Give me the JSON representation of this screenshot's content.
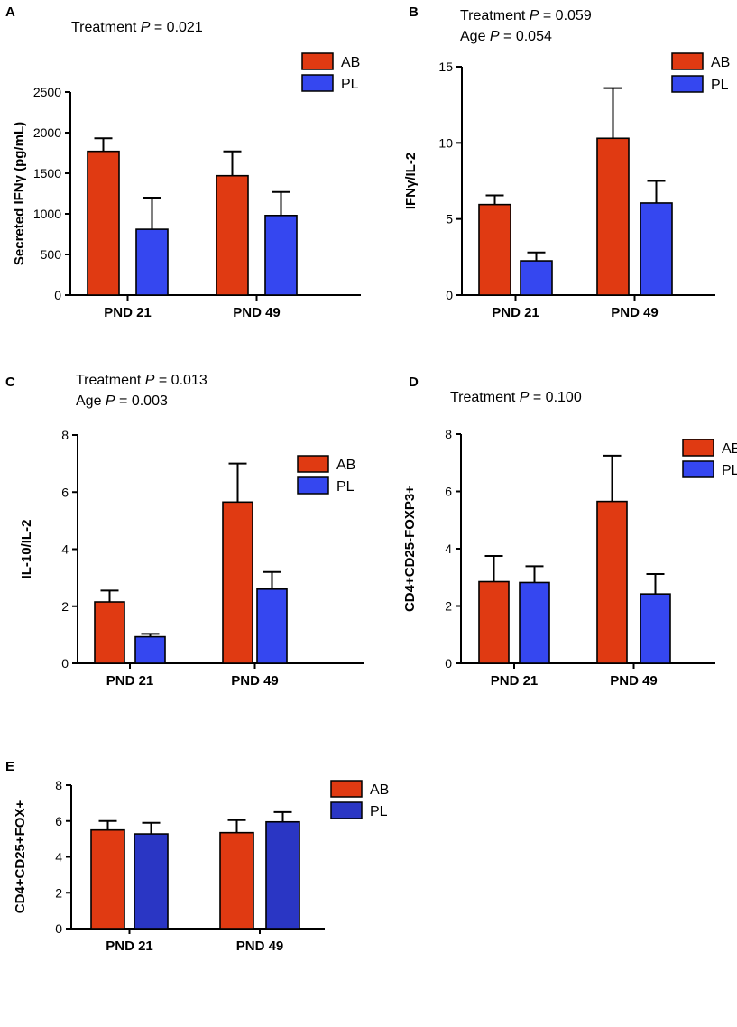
{
  "figure": {
    "colors": {
      "AB": "#e03a12",
      "PL": "#3547f0",
      "PL_dark": "#2a36c4"
    },
    "panels": [
      {
        "id": "A",
        "label": "A",
        "annotations": [
          {
            "prefix": "Treatment ",
            "p": "P",
            "suffix": " = 0.021"
          }
        ],
        "chart_data": {
          "type": "bar",
          "ylabel": "Secreted IFNγ (pg/mL)",
          "categories": [
            "PND 21",
            "PND 49"
          ],
          "ylim": [
            0,
            2500
          ],
          "yticks": [
            "0",
            "500",
            "1000",
            "1500",
            "2000",
            "2500"
          ],
          "series": [
            {
              "name": "AB",
              "values": [
                1770,
                1470
              ],
              "errors": [
                160,
                300
              ]
            },
            {
              "name": "PL",
              "values": [
                810,
                980
              ],
              "errors": [
                390,
                290
              ]
            }
          ]
        }
      },
      {
        "id": "B",
        "label": "B",
        "annotations": [
          {
            "prefix": "Treatment ",
            "p": "P",
            "suffix": "  = 0.059"
          },
          {
            "prefix": "Age ",
            "p": "P",
            "suffix": " = 0.054"
          }
        ],
        "chart_data": {
          "type": "bar",
          "ylabel": "IFNγ/IL-2",
          "categories": [
            "PND 21",
            "PND 49"
          ],
          "ylim": [
            0,
            15
          ],
          "yticks": [
            "0",
            "5",
            "10",
            "15"
          ],
          "series": [
            {
              "name": "AB",
              "values": [
                5.95,
                10.3
              ],
              "errors": [
                0.6,
                3.3
              ]
            },
            {
              "name": "PL",
              "values": [
                2.25,
                6.05
              ],
              "errors": [
                0.55,
                1.45
              ]
            }
          ]
        }
      },
      {
        "id": "C",
        "label": "C",
        "annotations": [
          {
            "prefix": "Treatment ",
            "p": "P",
            "suffix": " = 0.013"
          },
          {
            "prefix": "Age ",
            "p": "P",
            "suffix": " = 0.003"
          }
        ],
        "chart_data": {
          "type": "bar",
          "ylabel": "IL-10/IL-2",
          "categories": [
            "PND 21",
            "PND 49"
          ],
          "ylim": [
            0,
            8
          ],
          "yticks": [
            "0",
            "2",
            "4",
            "6",
            "8"
          ],
          "series": [
            {
              "name": "AB",
              "values": [
                2.15,
                5.65
              ],
              "errors": [
                0.4,
                1.35
              ]
            },
            {
              "name": "PL",
              "values": [
                0.93,
                2.6
              ],
              "errors": [
                0.1,
                0.6
              ]
            }
          ]
        }
      },
      {
        "id": "D",
        "label": "D",
        "annotations": [
          {
            "prefix": "Treatment ",
            "p": "P",
            "suffix": " = 0.100"
          }
        ],
        "chart_data": {
          "type": "bar",
          "ylabel": "CD4+CD25-FOXP3+",
          "categories": [
            "PND 21",
            "PND 49"
          ],
          "ylim": [
            0,
            8
          ],
          "yticks": [
            "0",
            "2",
            "4",
            "6",
            "8"
          ],
          "series": [
            {
              "name": "AB",
              "values": [
                2.85,
                5.65
              ],
              "errors": [
                0.9,
                1.6
              ]
            },
            {
              "name": "PL",
              "values": [
                2.82,
                2.42
              ],
              "errors": [
                0.57,
                0.7
              ]
            }
          ]
        }
      },
      {
        "id": "E",
        "label": "E",
        "annotations": [],
        "chart_data": {
          "type": "bar",
          "ylabel": "CD4+CD25+FOX+",
          "categories": [
            "PND 21",
            "PND 49"
          ],
          "ylim": [
            0,
            8
          ],
          "yticks": [
            "0",
            "2",
            "4",
            "6",
            "8"
          ],
          "series": [
            {
              "name": "AB",
              "values": [
                5.5,
                5.35
              ],
              "errors": [
                0.5,
                0.7
              ]
            },
            {
              "name": "PL",
              "values": [
                5.28,
                5.95
              ],
              "errors": [
                0.62,
                0.55
              ]
            }
          ]
        }
      }
    ]
  }
}
